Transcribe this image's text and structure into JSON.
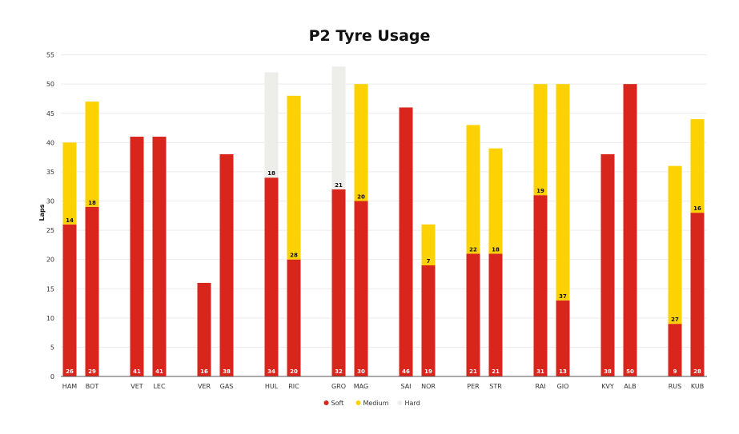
{
  "chart_data": {
    "type": "bar",
    "stacked": true,
    "title": "P2 Tyre Usage",
    "ylabel": "Laps",
    "xlabel": "",
    "ylim": [
      0,
      55
    ],
    "yticks": [
      0,
      5,
      10,
      15,
      20,
      25,
      30,
      35,
      40,
      45,
      50,
      55
    ],
    "grid": true,
    "legend_position": "bottom-center",
    "categories": [
      "HAM",
      "BOT",
      "VET",
      "LEC",
      "VER",
      "GAS",
      "HUL",
      "RIC",
      "GRO",
      "MAG",
      "SAI",
      "NOR",
      "PER",
      "STR",
      "RAI",
      "GIO",
      "KVY",
      "ALB",
      "RUS",
      "KUB"
    ],
    "series": [
      {
        "name": "Soft",
        "color": "#d9261c",
        "label_color": "#ffffff",
        "values": [
          26,
          29,
          41,
          41,
          16,
          38,
          34,
          20,
          32,
          30,
          46,
          19,
          21,
          21,
          31,
          13,
          38,
          50,
          9,
          28
        ]
      },
      {
        "name": "Medium",
        "color": "#fed102",
        "label_color": "#111111",
        "values": [
          14,
          18,
          0,
          0,
          0,
          0,
          0,
          28,
          0,
          20,
          0,
          7,
          22,
          18,
          19,
          37,
          0,
          0,
          27,
          16
        ]
      },
      {
        "name": "Hard",
        "color": "#ededea",
        "label_color": "#111111",
        "values": [
          0,
          0,
          0,
          0,
          0,
          0,
          18,
          0,
          21,
          0,
          0,
          0,
          0,
          0,
          0,
          0,
          0,
          0,
          0,
          0
        ]
      }
    ]
  }
}
